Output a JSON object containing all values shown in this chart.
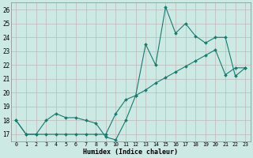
{
  "xlabel": "Humidex (Indice chaleur)",
  "background_color": "#cce9e4",
  "grid_color": "#c0b8b8",
  "line_color": "#1a7a6e",
  "x_values": [
    0,
    1,
    2,
    3,
    4,
    5,
    6,
    7,
    8,
    9,
    10,
    11,
    12,
    13,
    14,
    15,
    16,
    17,
    18,
    19,
    20,
    21,
    22,
    23
  ],
  "y_series1": [
    18.0,
    17.0,
    17.0,
    18.0,
    18.5,
    18.2,
    18.2,
    18.0,
    17.8,
    16.8,
    16.6,
    18.0,
    19.8,
    23.5,
    22.0,
    26.2,
    24.3,
    25.0,
    24.1,
    23.6,
    24.0,
    24.0,
    21.2,
    21.8
  ],
  "y_series2": [
    18.0,
    17.0,
    17.0,
    17.0,
    17.0,
    17.0,
    17.0,
    17.0,
    17.0,
    17.0,
    18.5,
    19.5,
    19.8,
    20.2,
    20.7,
    21.1,
    21.5,
    21.9,
    22.3,
    22.7,
    23.1,
    21.3,
    21.8,
    21.8
  ],
  "ylim_min": 16.5,
  "ylim_max": 26.5,
  "xlim_min": -0.5,
  "xlim_max": 23.5,
  "yticks": [
    17,
    18,
    19,
    20,
    21,
    22,
    23,
    24,
    25,
    26
  ],
  "xticks": [
    0,
    1,
    2,
    3,
    4,
    5,
    6,
    7,
    8,
    9,
    10,
    11,
    12,
    13,
    14,
    15,
    16,
    17,
    18,
    19,
    20,
    21,
    22,
    23
  ]
}
